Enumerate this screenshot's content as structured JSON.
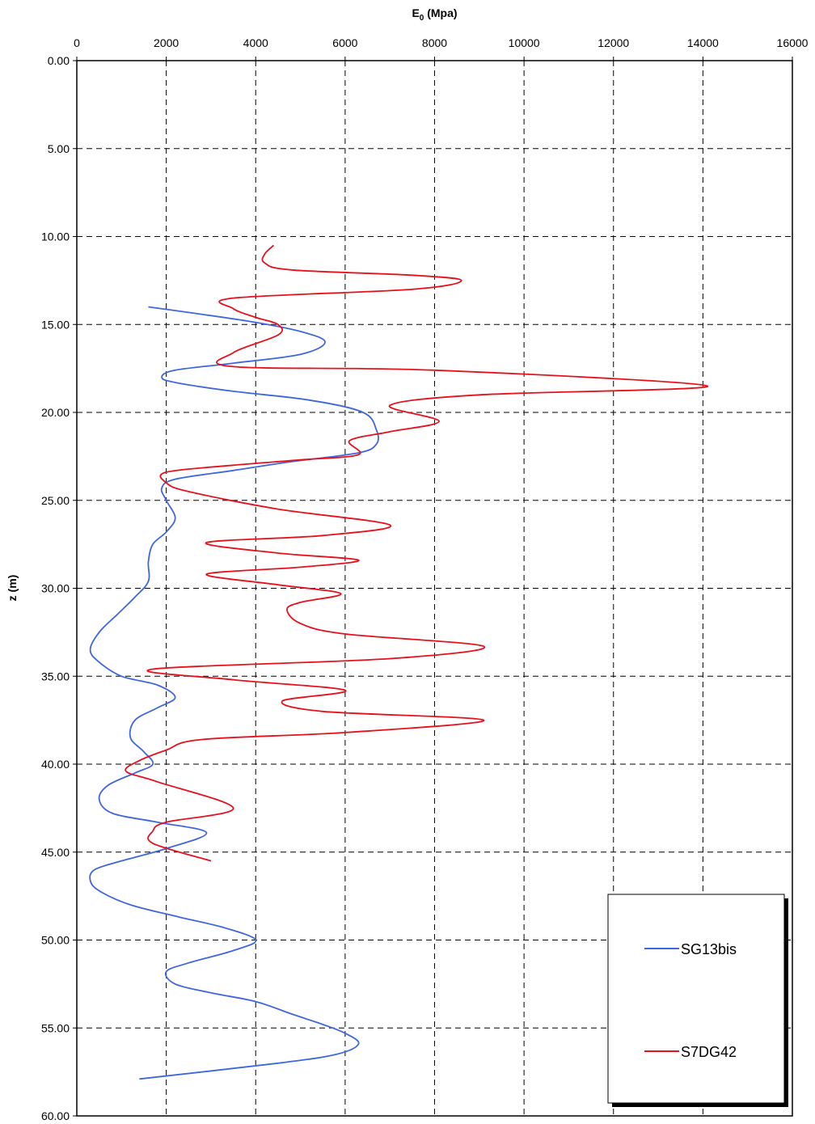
{
  "chart_data": {
    "type": "line",
    "title": "",
    "xlabel_main": "E",
    "xlabel_sub": "0",
    "xlabel_rest": " (Mpa)",
    "ylabel": "z (m)",
    "xlim": [
      0,
      16000
    ],
    "ylim": [
      0,
      60
    ],
    "y_inverted": true,
    "x_axis_position": "top",
    "x_ticks": [
      0,
      2000,
      4000,
      6000,
      8000,
      10000,
      12000,
      14000,
      16000
    ],
    "y_ticks": [
      0,
      5,
      10,
      15,
      20,
      25,
      30,
      35,
      40,
      45,
      50,
      55,
      60
    ],
    "x_tick_labels": [
      "0",
      "2000",
      "4000",
      "6000",
      "8000",
      "10000",
      "12000",
      "14000",
      "16000"
    ],
    "y_tick_labels": [
      "0.00",
      "5.00",
      "10.00",
      "15.00",
      "20.00",
      "25.00",
      "30.00",
      "35.00",
      "40.00",
      "45.00",
      "50.00",
      "55.00",
      "60.00"
    ],
    "grid": true,
    "legend_position": "bottom-right",
    "series": [
      {
        "name": "SG13bis",
        "color": "#3f66e0",
        "points": [
          [
            1600,
            14.0
          ],
          [
            3800,
            14.8
          ],
          [
            5000,
            15.4
          ],
          [
            5550,
            16.0
          ],
          [
            5000,
            16.7
          ],
          [
            3500,
            17.2
          ],
          [
            2200,
            17.6
          ],
          [
            1900,
            18.0
          ],
          [
            2200,
            18.3
          ],
          [
            3500,
            18.8
          ],
          [
            5200,
            19.3
          ],
          [
            6400,
            20.0
          ],
          [
            6700,
            21.0
          ],
          [
            6700,
            21.8
          ],
          [
            6300,
            22.3
          ],
          [
            4800,
            22.8
          ],
          [
            3500,
            23.3
          ],
          [
            2200,
            23.8
          ],
          [
            1900,
            24.3
          ],
          [
            2000,
            25.0
          ],
          [
            2200,
            26.0
          ],
          [
            2000,
            26.8
          ],
          [
            1700,
            27.5
          ],
          [
            1600,
            28.5
          ],
          [
            1600,
            29.6
          ],
          [
            1300,
            30.5
          ],
          [
            900,
            31.5
          ],
          [
            500,
            32.5
          ],
          [
            300,
            33.5
          ],
          [
            500,
            34.2
          ],
          [
            1000,
            35.0
          ],
          [
            1800,
            35.5
          ],
          [
            2200,
            36.2
          ],
          [
            1800,
            36.8
          ],
          [
            1300,
            37.5
          ],
          [
            1200,
            38.5
          ],
          [
            1500,
            39.3
          ],
          [
            1700,
            40.0
          ],
          [
            1300,
            40.5
          ],
          [
            700,
            41.2
          ],
          [
            500,
            42.0
          ],
          [
            800,
            42.8
          ],
          [
            1800,
            43.3
          ],
          [
            2900,
            43.9
          ],
          [
            2000,
            44.8
          ],
          [
            1000,
            45.5
          ],
          [
            400,
            46.0
          ],
          [
            300,
            46.6
          ],
          [
            500,
            47.2
          ],
          [
            1200,
            48.0
          ],
          [
            2300,
            48.7
          ],
          [
            3300,
            49.3
          ],
          [
            4000,
            50.0
          ],
          [
            3500,
            50.6
          ],
          [
            2500,
            51.3
          ],
          [
            2000,
            51.8
          ],
          [
            2200,
            52.5
          ],
          [
            3000,
            53.0
          ],
          [
            4000,
            53.5
          ],
          [
            4800,
            54.2
          ],
          [
            5500,
            54.8
          ],
          [
            6000,
            55.3
          ],
          [
            6300,
            55.9
          ],
          [
            5800,
            56.5
          ],
          [
            4500,
            57.0
          ],
          [
            1400,
            57.9
          ]
        ]
      },
      {
        "name": "S7DG42",
        "color": "#e8101c",
        "points": [
          [
            4400,
            10.5
          ],
          [
            4200,
            11.0
          ],
          [
            4200,
            11.5
          ],
          [
            4800,
            11.9
          ],
          [
            7500,
            12.2
          ],
          [
            8600,
            12.5
          ],
          [
            7500,
            13.0
          ],
          [
            3500,
            13.5
          ],
          [
            3500,
            14.1
          ],
          [
            4000,
            14.6
          ],
          [
            4500,
            15.0
          ],
          [
            4500,
            15.6
          ],
          [
            3500,
            16.6
          ],
          [
            3500,
            17.4
          ],
          [
            8000,
            17.6
          ],
          [
            14100,
            18.5
          ],
          [
            9000,
            19.0
          ],
          [
            7000,
            19.6
          ],
          [
            8100,
            20.5
          ],
          [
            7000,
            21.1
          ],
          [
            6100,
            21.6
          ],
          [
            6300,
            22.4
          ],
          [
            5000,
            22.7
          ],
          [
            3500,
            23.0
          ],
          [
            2000,
            23.4
          ],
          [
            2000,
            24.0
          ],
          [
            2500,
            24.5
          ],
          [
            4500,
            25.5
          ],
          [
            7000,
            26.4
          ],
          [
            5500,
            27.0
          ],
          [
            2900,
            27.4
          ],
          [
            4500,
            28.0
          ],
          [
            6300,
            28.4
          ],
          [
            5000,
            28.8
          ],
          [
            2900,
            29.2
          ],
          [
            4500,
            29.8
          ],
          [
            5900,
            30.3
          ],
          [
            5000,
            30.8
          ],
          [
            4700,
            31.2
          ],
          [
            5000,
            32.0
          ],
          [
            6000,
            32.6
          ],
          [
            9100,
            33.3
          ],
          [
            7000,
            34.0
          ],
          [
            1700,
            34.6
          ],
          [
            3500,
            35.2
          ],
          [
            6000,
            35.8
          ],
          [
            4600,
            36.4
          ],
          [
            5500,
            37.0
          ],
          [
            9100,
            37.5
          ],
          [
            6000,
            38.2
          ],
          [
            2800,
            38.6
          ],
          [
            2000,
            39.2
          ],
          [
            1400,
            39.8
          ],
          [
            1100,
            40.4
          ],
          [
            1800,
            41.0
          ],
          [
            3500,
            42.5
          ],
          [
            2000,
            43.3
          ],
          [
            1700,
            43.8
          ],
          [
            1700,
            44.5
          ],
          [
            3000,
            45.5
          ]
        ]
      }
    ]
  }
}
